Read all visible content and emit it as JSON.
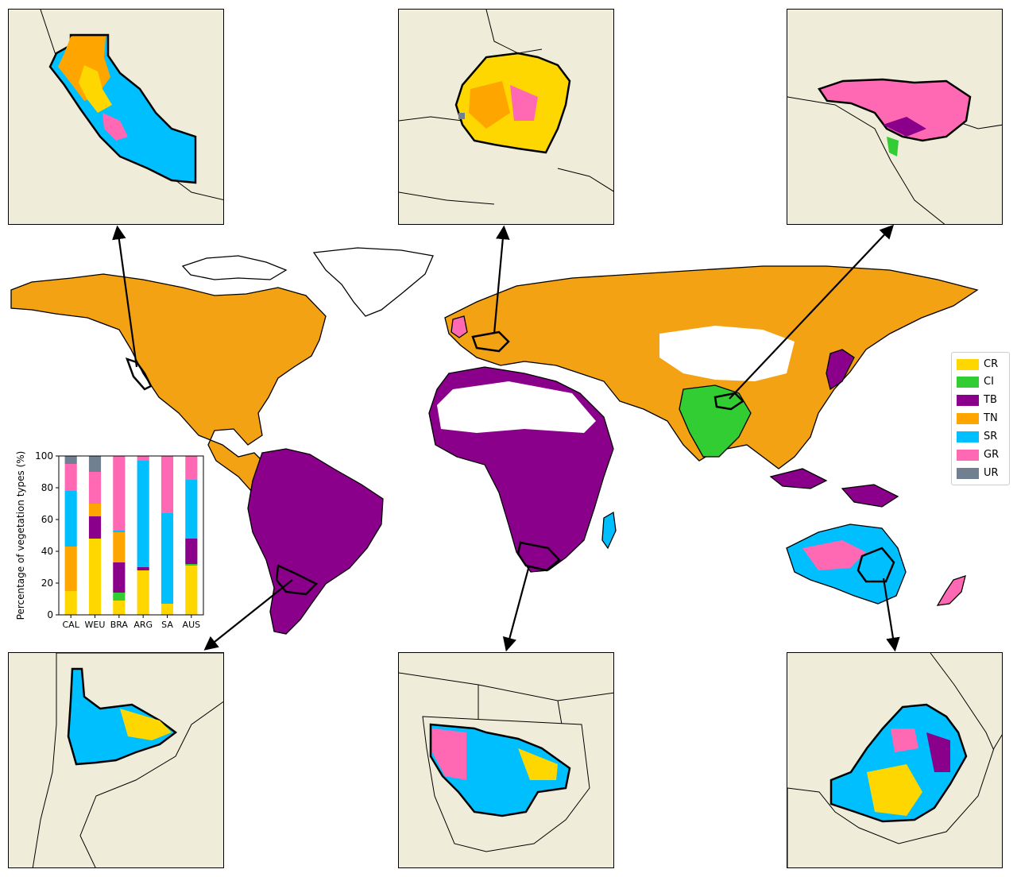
{
  "legend": [
    {
      "code": "CR",
      "color": "#ffd700"
    },
    {
      "code": "CI",
      "color": "#32cd32"
    },
    {
      "code": "TB",
      "color": "#8b008b"
    },
    {
      "code": "TN",
      "color": "#ffa500"
    },
    {
      "code": "SR",
      "color": "#00bfff"
    },
    {
      "code": "GR",
      "color": "#ff69b4"
    },
    {
      "code": "UR",
      "color": "#708090"
    }
  ],
  "insets": [
    {
      "region": "CAL",
      "dominant": [
        "TN",
        "SR",
        "CR",
        "GR"
      ]
    },
    {
      "region": "WEU",
      "dominant": [
        "CR",
        "TN",
        "GR",
        "UR"
      ]
    },
    {
      "region": "BRA",
      "dominant": [
        "GR",
        "TB",
        "CI"
      ]
    },
    {
      "region": "ARG",
      "dominant": [
        "SR",
        "CR"
      ]
    },
    {
      "region": "SA",
      "dominant": [
        "SR",
        "GR",
        "CR"
      ]
    },
    {
      "region": "AUS",
      "dominant": [
        "SR",
        "CR",
        "TB",
        "GR"
      ]
    }
  ],
  "chart_data": {
    "type": "bar",
    "stacked": true,
    "categories": [
      "CAL",
      "WEU",
      "BRA",
      "ARG",
      "SA",
      "AUS"
    ],
    "ylabel": "Percentage of vegetation types (%)",
    "ylim": [
      0,
      100
    ],
    "yticks": [
      0,
      20,
      40,
      60,
      80,
      100
    ],
    "series": [
      {
        "name": "CR",
        "color": "#ffd700",
        "values": [
          15,
          48,
          9,
          28,
          7,
          31
        ]
      },
      {
        "name": "CI",
        "color": "#32cd32",
        "values": [
          0,
          0,
          5,
          0,
          0,
          1
        ]
      },
      {
        "name": "TB",
        "color": "#8b008b",
        "values": [
          0,
          14,
          19,
          2,
          0,
          16
        ]
      },
      {
        "name": "TN",
        "color": "#ffa500",
        "values": [
          28,
          8,
          19,
          0,
          0,
          0
        ]
      },
      {
        "name": "SR",
        "color": "#00bfff",
        "values": [
          35,
          0,
          1,
          67,
          57,
          37
        ]
      },
      {
        "name": "GR",
        "color": "#ff69b4",
        "values": [
          17,
          20,
          47,
          3,
          36,
          15
        ]
      },
      {
        "name": "UR",
        "color": "#708090",
        "values": [
          5,
          10,
          0,
          0,
          0,
          0
        ]
      }
    ]
  }
}
